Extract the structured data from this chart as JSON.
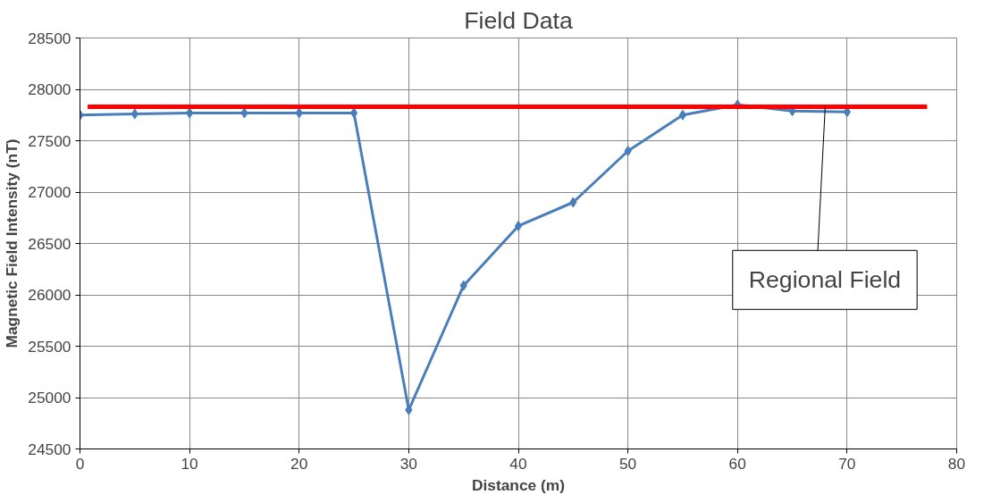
{
  "chart_data": {
    "type": "line",
    "title": "Field Data",
    "xlabel": "Distance (m)",
    "ylabel": "Magnetic Field Intensity (nT)",
    "x": [
      0,
      5,
      10,
      15,
      20,
      25,
      30,
      35,
      40,
      45,
      50,
      55,
      60,
      65,
      70
    ],
    "series": [
      {
        "color": "#4a7ebb",
        "values": [
          27750,
          27760,
          27770,
          27770,
          27770,
          27770,
          24880,
          26090,
          26670,
          26900,
          27400,
          27750,
          27850,
          27790,
          27780
        ],
        "marker": "diamond"
      },
      {
        "color": "#ff0000",
        "x": [
          0.7,
          77.3
        ],
        "values": [
          27830,
          27830
        ],
        "marker": "none"
      }
    ],
    "annotations": [
      {
        "text": "Regional Field",
        "x": 68,
        "y": 27830
      }
    ],
    "xlim": [
      0,
      80
    ],
    "ylim": [
      24500,
      28500
    ],
    "xticks": [
      0,
      10,
      20,
      30,
      40,
      50,
      60,
      70,
      80
    ],
    "yticks": [
      24500,
      25000,
      25500,
      26000,
      26500,
      27000,
      27500,
      28000,
      28500
    ],
    "grid": true
  }
}
